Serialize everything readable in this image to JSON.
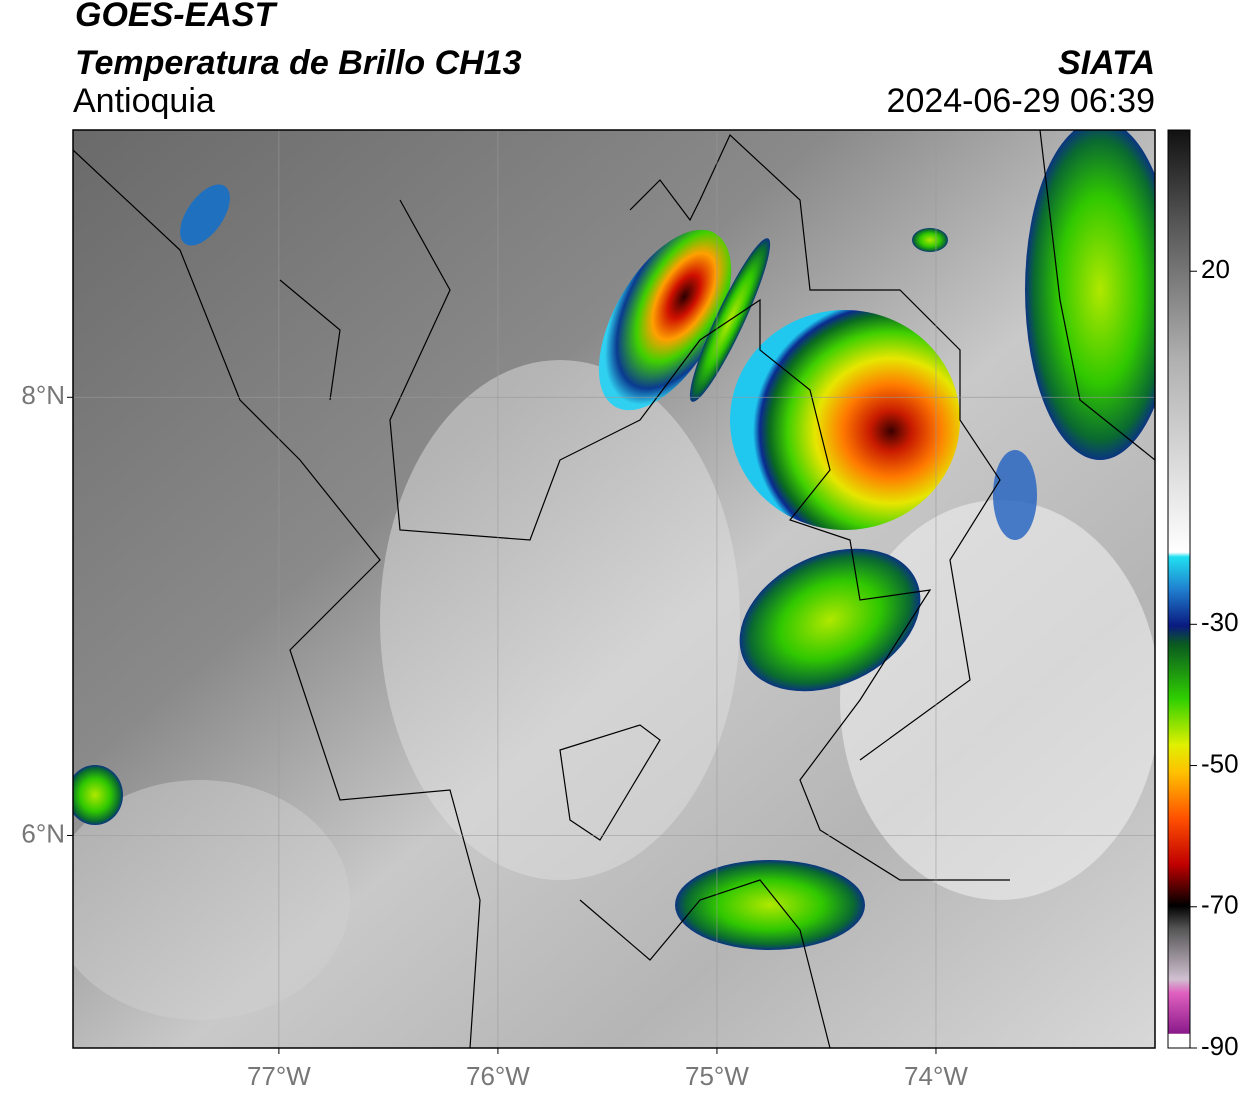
{
  "header": {
    "title": "GOES-EAST",
    "subtitle": "Temperatura de Brillo CH13",
    "region": "Antioquia",
    "source": "SIATA",
    "datetime": "2024-06-29 06:39"
  },
  "map": {
    "xlim": [
      -77.94,
      -73.0
    ],
    "ylim": [
      5.03,
      9.22
    ],
    "xticks": [
      {
        "value": -77,
        "label": "77°W"
      },
      {
        "value": -76,
        "label": "76°W"
      },
      {
        "value": -75,
        "label": "75°W"
      },
      {
        "value": -74,
        "label": "74°W"
      }
    ],
    "yticks": [
      {
        "value": 6,
        "label": "6°N"
      },
      {
        "value": 8,
        "label": "8°N"
      }
    ]
  },
  "colorbar": {
    "lim": [
      -90,
      40
    ],
    "ticks": [
      20,
      -30,
      -50,
      -70,
      -90
    ]
  }
}
